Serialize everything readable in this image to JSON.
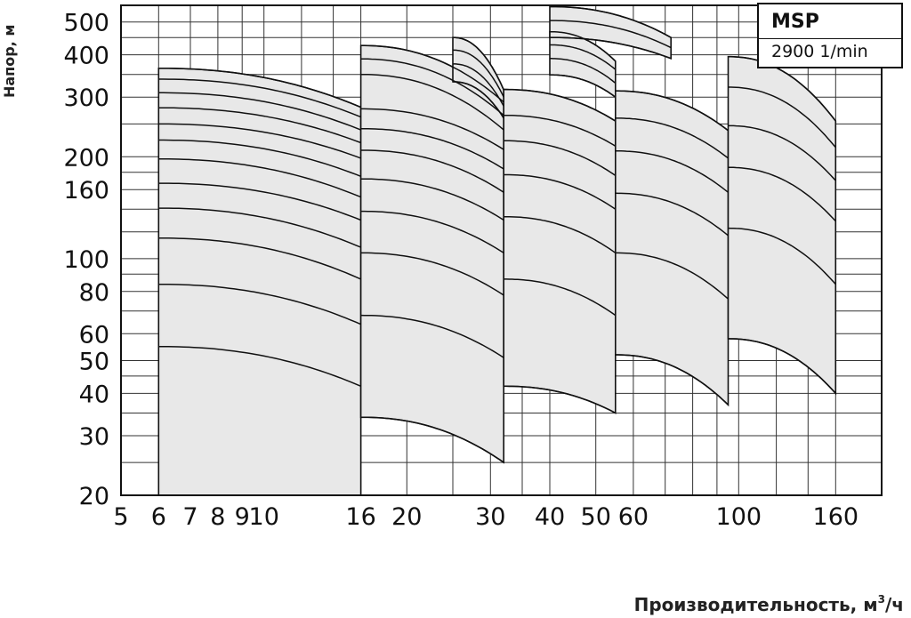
{
  "chart_data": {
    "type": "line",
    "title": "",
    "xlabel": "Производительность, м",
    "xlabel_sup": "3",
    "xlabel_suffix": "/ч",
    "ylabel": "Напор, м",
    "xscale": "log",
    "yscale": "log",
    "xlim": [
      5,
      200
    ],
    "ylim": [
      20,
      560
    ],
    "grid": true,
    "x_ticks": [
      5,
      6,
      7,
      8,
      9,
      10,
      16,
      20,
      30,
      40,
      50,
      60,
      100,
      160
    ],
    "x_tick_labels": [
      "5",
      "6",
      "7",
      "8",
      "9",
      "10",
      "16",
      "20",
      "30",
      "40",
      "50",
      "60",
      "100",
      "160"
    ],
    "x_gridlines": [
      5,
      6,
      7,
      8,
      9,
      10,
      12,
      14,
      16,
      20,
      25,
      30,
      35,
      40,
      50,
      60,
      70,
      80,
      90,
      100,
      120,
      140,
      160,
      200
    ],
    "y_ticks": [
      20,
      30,
      40,
      50,
      60,
      80,
      100,
      160,
      200,
      300,
      400,
      500
    ],
    "y_tick_labels": [
      "20",
      "30",
      "40",
      "50",
      "60",
      "80",
      "100",
      "160",
      "200",
      "300",
      "400",
      "500"
    ],
    "y_gridlines": [
      20,
      25,
      30,
      35,
      40,
      45,
      50,
      60,
      70,
      80,
      90,
      100,
      120,
      140,
      160,
      180,
      200,
      250,
      300,
      350,
      400,
      450,
      500
    ],
    "legend": {
      "title": "MSP",
      "speed": "2900 1/min"
    },
    "fill_color": "#e8e8e8",
    "line_color": "#111111",
    "families": [
      {
        "x_range": [
          6,
          16
        ],
        "bottom": 20,
        "start_heads": [
          55,
          84,
          115,
          141,
          167,
          197,
          224,
          250,
          279,
          309,
          339,
          365
        ],
        "end_heads": [
          42,
          64,
          87,
          108,
          130,
          152,
          175,
          198,
          220,
          240,
          262,
          280
        ]
      },
      {
        "x_range": [
          16,
          32
        ],
        "start_heads": [
          34,
          68,
          104,
          138,
          172,
          209,
          242,
          277,
          350,
          389,
          426
        ],
        "end_heads": [
          25,
          51,
          78,
          104,
          130,
          157,
          184,
          210,
          240,
          265,
          290
        ]
      },
      {
        "x_range": [
          25,
          32
        ],
        "partial": true,
        "start_heads": [
          333,
          376,
          413,
          450
        ],
        "end_heads": [
          260,
          282,
          300,
          315
        ]
      },
      {
        "x_range": [
          32,
          55
        ],
        "start_heads": [
          42,
          87,
          133,
          177,
          223,
          265,
          316
        ],
        "end_heads": [
          35,
          68,
          104,
          140,
          176,
          215,
          255
        ]
      },
      {
        "x_range": [
          40,
          55
        ],
        "partial": true,
        "start_heads": [
          349,
          390,
          428,
          468
        ],
        "end_heads": [
          300,
          330,
          362,
          383
        ]
      },
      {
        "x_range": [
          55,
          95
        ],
        "start_heads": [
          52,
          104,
          156,
          208,
          260,
          313
        ],
        "end_heads": [
          37,
          76,
          117,
          157,
          198,
          239
        ]
      },
      {
        "x_range": [
          40,
          72
        ],
        "partial": true,
        "start_heads": [
          450,
          505,
          555
        ],
        "end_heads": [
          390,
          420,
          450
        ]
      },
      {
        "x_range": [
          95,
          160
        ],
        "start_heads": [
          58,
          123,
          186,
          247,
          321,
          395
        ],
        "end_heads": [
          40,
          84,
          129,
          170,
          213,
          255
        ]
      }
    ]
  }
}
